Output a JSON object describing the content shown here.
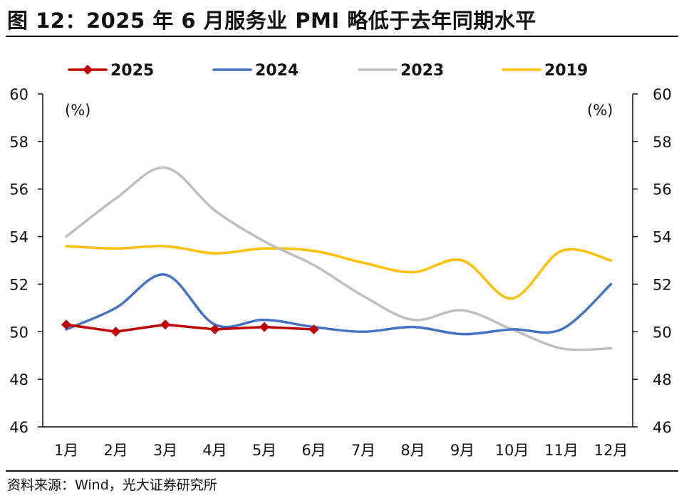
{
  "header": {
    "title": "图 12：2025 年 6 月服务业 PMI 略低于去年同期水平"
  },
  "footer": {
    "source": "资料来源：Wind，光大证券研究所"
  },
  "chart_data": {
    "type": "line",
    "title": "",
    "xlabel": "",
    "ylabel": "(%)",
    "ylabel_right": "(%)",
    "categories": [
      "1月",
      "2月",
      "3月",
      "4月",
      "5月",
      "6月",
      "7月",
      "8月",
      "9月",
      "10月",
      "11月",
      "12月"
    ],
    "ylim": [
      46,
      60
    ],
    "yticks": [
      46,
      48,
      50,
      52,
      54,
      56,
      58,
      60
    ],
    "dual_axis": true,
    "grid": false,
    "legend_position": "top",
    "series": [
      {
        "name": "2025",
        "color": "#C00000",
        "marker": "diamond",
        "smooth": false,
        "values": [
          50.3,
          50.0,
          50.3,
          50.1,
          50.2,
          50.1,
          null,
          null,
          null,
          null,
          null,
          null
        ]
      },
      {
        "name": "2024",
        "color": "#4472C4",
        "marker": "none",
        "smooth": true,
        "values": [
          50.1,
          51.0,
          52.4,
          50.3,
          50.5,
          50.2,
          50.0,
          50.2,
          49.9,
          50.1,
          50.1,
          52.0
        ]
      },
      {
        "name": "2023",
        "color": "#BFBFBF",
        "marker": "none",
        "smooth": true,
        "values": [
          54.0,
          55.6,
          56.9,
          55.1,
          53.8,
          52.8,
          51.5,
          50.5,
          50.9,
          50.1,
          49.3,
          49.3
        ]
      },
      {
        "name": "2019",
        "color": "#FFC000",
        "marker": "none",
        "smooth": true,
        "values": [
          53.6,
          53.5,
          53.6,
          53.3,
          53.5,
          53.4,
          52.9,
          52.5,
          53.0,
          51.4,
          53.4,
          53.0
        ]
      }
    ]
  }
}
